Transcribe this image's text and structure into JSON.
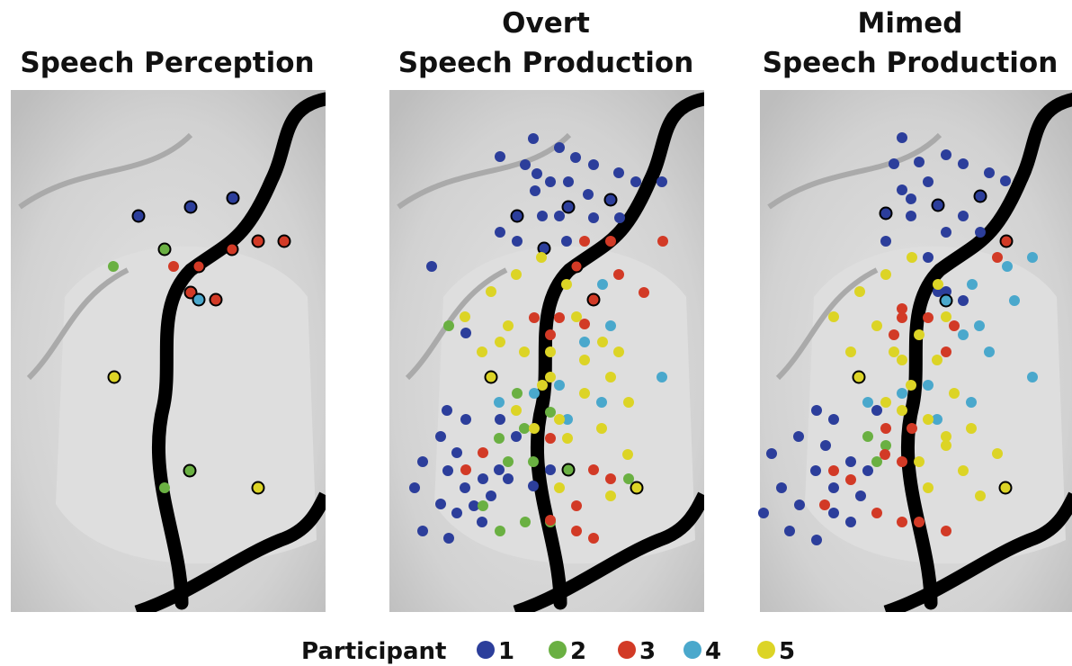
{
  "panels": [
    {
      "title": [
        "Speech Perception"
      ]
    },
    {
      "title": [
        "Overt",
        "Speech Production"
      ]
    },
    {
      "title": [
        "Mimed",
        "Speech Production"
      ]
    }
  ],
  "legend": {
    "label": "Participant",
    "items": [
      {
        "label": "1",
        "color": "#2c3e9b"
      },
      {
        "label": "2",
        "color": "#6ab042"
      },
      {
        "label": "3",
        "color": "#d23a26"
      },
      {
        "label": "4",
        "color": "#4aa8cc"
      },
      {
        "label": "5",
        "color": "#dcd426"
      }
    ]
  }
}
